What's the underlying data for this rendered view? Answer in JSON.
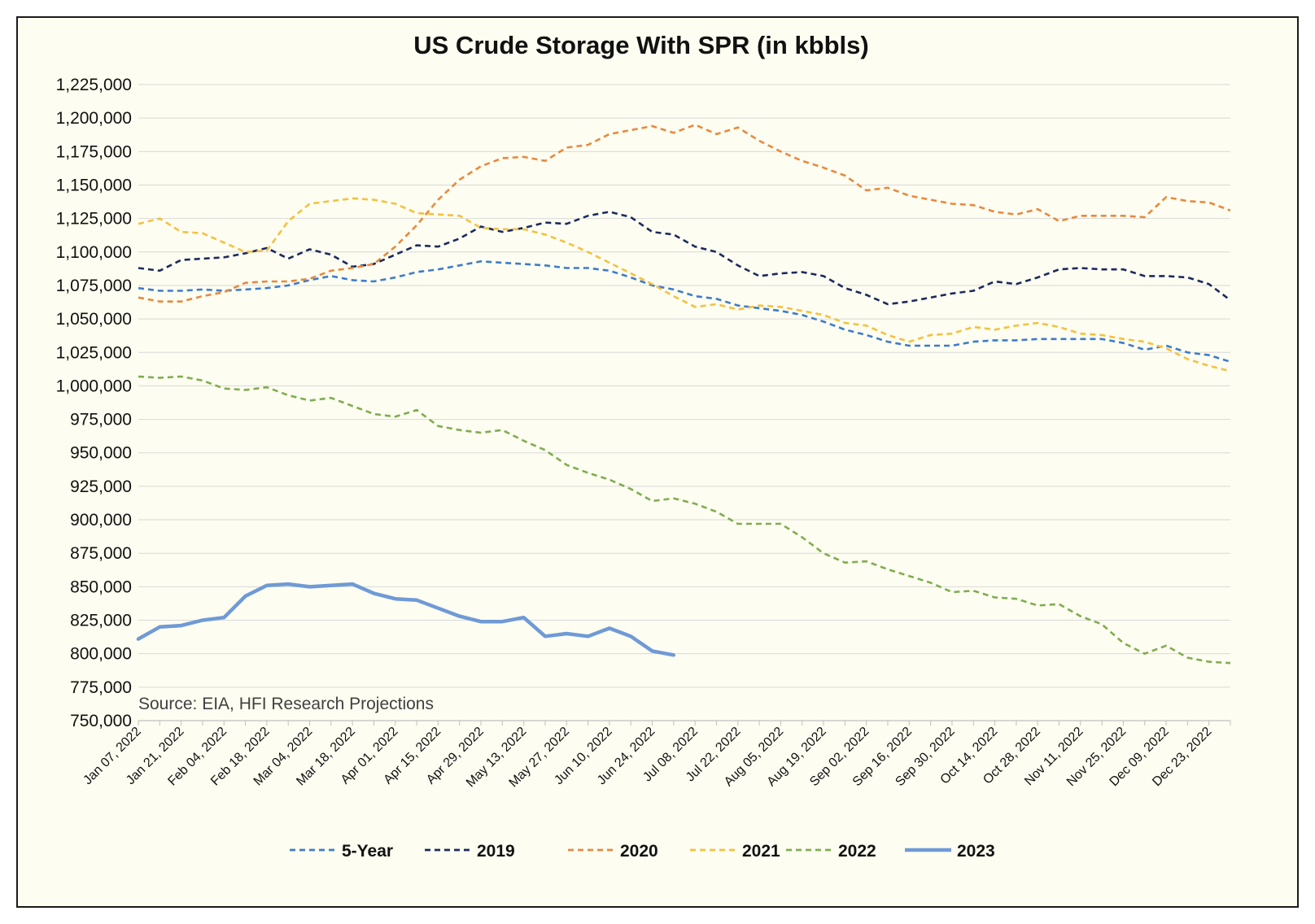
{
  "chart_data": {
    "type": "line",
    "title": "US Crude Storage With SPR (in kbbls)",
    "annotation": "Source: EIA, HFI Research Projections",
    "xlabel": "",
    "ylabel": "",
    "ylim": [
      750000,
      1225000
    ],
    "y_ticks": [
      1225000,
      1200000,
      1175000,
      1150000,
      1125000,
      1100000,
      1075000,
      1050000,
      1025000,
      1000000,
      975000,
      950000,
      925000,
      900000,
      875000,
      850000,
      825000,
      800000,
      775000,
      750000
    ],
    "y_tick_labels": [
      "1,225,000",
      "1,200,000",
      "1,175,000",
      "1,150,000",
      "1,125,000",
      "1,100,000",
      "1,075,000",
      "1,050,000",
      "1,025,000",
      "1,000,000",
      "975,000",
      "950,000",
      "925,000",
      "900,000",
      "875,000",
      "850,000",
      "825,000",
      "800,000",
      "775,000",
      "750,000"
    ],
    "x_tick_labels": [
      "Jan 07, 2022",
      "Jan 21, 2022",
      "Feb 04, 2022",
      "Feb 18, 2022",
      "Mar 04, 2022",
      "Mar 18, 2022",
      "Apr 01, 2022",
      "Apr 15, 2022",
      "Apr 29, 2022",
      "May 13, 2022",
      "May 27, 2022",
      "Jun 10, 2022",
      "Jun 24, 2022",
      "Jul 08, 2022",
      "Jul 22, 2022",
      "Aug 05, 2022",
      "Aug 19, 2022",
      "Sep 02, 2022",
      "Sep 16, 2022",
      "Sep 30, 2022",
      "Oct 14, 2022",
      "Oct 28, 2022",
      "Nov 11, 2022",
      "Nov 25, 2022",
      "Dec 09, 2022",
      "Dec 23, 2022"
    ],
    "x_tick_every_weeks": 2,
    "weeks": 52,
    "grid": "horizontal",
    "legend_position": "bottom",
    "series": [
      {
        "name": "5-Year",
        "color": "#3d7cc9",
        "style": "dashed",
        "values": [
          1073000,
          1071000,
          1071000,
          1072000,
          1071000,
          1072000,
          1073000,
          1075000,
          1079000,
          1082000,
          1079000,
          1078000,
          1081000,
          1085000,
          1087000,
          1090000,
          1093000,
          1092000,
          1091000,
          1090000,
          1088000,
          1088000,
          1086000,
          1081000,
          1075000,
          1072000,
          1067000,
          1065000,
          1060000,
          1058000,
          1056000,
          1053000,
          1048000,
          1042000,
          1038000,
          1033000,
          1030000,
          1030000,
          1030000,
          1033000,
          1034000,
          1034000,
          1035000,
          1035000,
          1035000,
          1035000,
          1032000,
          1027000,
          1030000,
          1025000,
          1023000,
          1018000
        ]
      },
      {
        "name": "2019",
        "color": "#1b2a5e",
        "style": "dashed",
        "values": [
          1088000,
          1086000,
          1094000,
          1095000,
          1096000,
          1099000,
          1103000,
          1095000,
          1102000,
          1098000,
          1089000,
          1091000,
          1098000,
          1105000,
          1104000,
          1110000,
          1119000,
          1115000,
          1118000,
          1122000,
          1121000,
          1127000,
          1130000,
          1126000,
          1115000,
          1113000,
          1104000,
          1100000,
          1090000,
          1082000,
          1084000,
          1085000,
          1082000,
          1073000,
          1068000,
          1061000,
          1063000,
          1066000,
          1069000,
          1071000,
          1078000,
          1076000,
          1081000,
          1087000,
          1088000,
          1087000,
          1087000,
          1082000,
          1082000,
          1081000,
          1076000,
          1064000
        ]
      },
      {
        "name": "2020",
        "color": "#e8893f",
        "style": "dashed",
        "values": [
          1066000,
          1063000,
          1063000,
          1067000,
          1070000,
          1077000,
          1078000,
          1078000,
          1080000,
          1086000,
          1088000,
          1091000,
          1104000,
          1120000,
          1139000,
          1154000,
          1164000,
          1170000,
          1171000,
          1168000,
          1178000,
          1180000,
          1188000,
          1191000,
          1194000,
          1189000,
          1195000,
          1188000,
          1193000,
          1183000,
          1175000,
          1168000,
          1163000,
          1157000,
          1146000,
          1148000,
          1142000,
          1139000,
          1136000,
          1135000,
          1130000,
          1128000,
          1132000,
          1123000,
          1127000,
          1127000,
          1127000,
          1126000,
          1141000,
          1138000,
          1137000,
          1131000
        ]
      },
      {
        "name": "2021",
        "color": "#f4c13f",
        "style": "dashed",
        "values": [
          1121000,
          1125000,
          1115000,
          1114000,
          1107000,
          1100000,
          1101000,
          1123000,
          1136000,
          1138000,
          1140000,
          1139000,
          1136000,
          1129000,
          1128000,
          1127000,
          1118000,
          1117000,
          1117000,
          1113000,
          1107000,
          1100000,
          1092000,
          1084000,
          1076000,
          1067000,
          1059000,
          1061000,
          1057000,
          1060000,
          1059000,
          1056000,
          1053000,
          1047000,
          1045000,
          1038000,
          1033000,
          1038000,
          1039000,
          1044000,
          1042000,
          1045000,
          1047000,
          1044000,
          1039000,
          1038000,
          1035000,
          1033000,
          1028000,
          1020000,
          1015000,
          1011000
        ]
      },
      {
        "name": "2022",
        "color": "#7fad4f",
        "style": "dashed",
        "values": [
          1007000,
          1006000,
          1007000,
          1004000,
          998000,
          997000,
          999000,
          993000,
          989000,
          991000,
          985000,
          979000,
          977000,
          982000,
          970000,
          967000,
          965000,
          967000,
          959000,
          952000,
          941000,
          935000,
          930000,
          923000,
          914000,
          916000,
          912000,
          906000,
          897000,
          897000,
          897000,
          887000,
          875000,
          868000,
          869000,
          863000,
          858000,
          853000,
          846000,
          847000,
          842000,
          841000,
          836000,
          837000,
          828000,
          822000,
          808000,
          800000,
          806000,
          797000,
          794000,
          793000
        ]
      },
      {
        "name": "2023",
        "color": "#6f9ad6",
        "style": "solid",
        "values": [
          811000,
          820000,
          821000,
          825000,
          827000,
          843000,
          851000,
          852000,
          850000,
          851000,
          852000,
          845000,
          841000,
          840000,
          834000,
          828000,
          824000,
          824000,
          827000,
          813000,
          815000,
          813000,
          819000,
          813000,
          802000,
          799000
        ]
      }
    ]
  }
}
